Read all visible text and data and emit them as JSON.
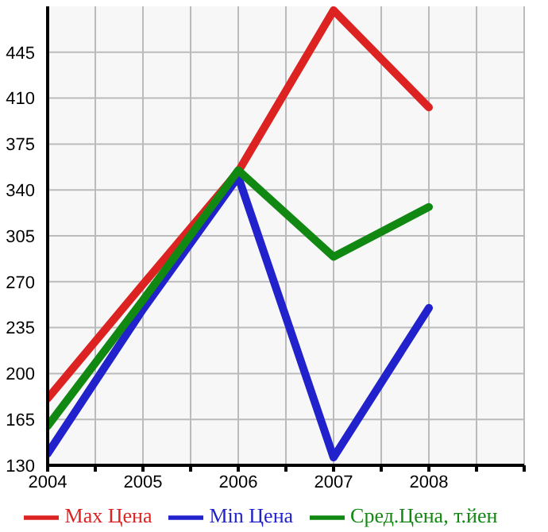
{
  "chart_data": {
    "type": "line",
    "x": [
      2004,
      2005,
      2006,
      2007,
      2008
    ],
    "series": [
      {
        "name": "Max Цена",
        "color": "#dd2222",
        "values": [
          181,
          268,
          354,
          477,
          403
        ]
      },
      {
        "name": "Min Цена",
        "color": "#2222cc",
        "values": [
          139,
          249,
          350,
          136,
          250
        ]
      },
      {
        "name": "Сред.Цена, т.йен",
        "color": "#118811",
        "values": [
          160,
          256,
          355,
          289,
          327
        ]
      }
    ],
    "xlim": [
      2004,
      2009
    ],
    "xticks": [
      2004,
      {
        "value": 2004.5,
        "label": null
      },
      2005,
      {
        "value": 2005.5,
        "label": null
      },
      2006,
      {
        "value": 2006.5,
        "label": null
      },
      2007,
      {
        "value": 2007.5,
        "label": null
      },
      2008,
      {
        "value": 2008.5,
        "label": null
      },
      {
        "value": 2009,
        "label": null
      }
    ],
    "ylim": [
      130,
      480
    ],
    "yticks": [
      130,
      165,
      200,
      235,
      270,
      305,
      340,
      375,
      410,
      445
    ],
    "grid": true,
    "legend": "bottom",
    "marker": "none",
    "line_style": "solid"
  }
}
